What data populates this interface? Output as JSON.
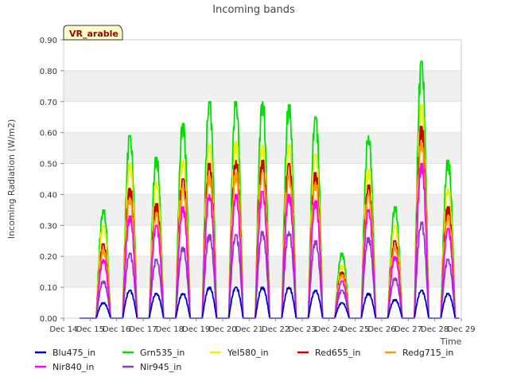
{
  "chart_data": {
    "type": "line",
    "title": "Incoming bands",
    "xlabel": "Time",
    "ylabel": "Incoming Radiation (W/m2)",
    "site_label": "VR_arable",
    "ylim": [
      0,
      0.9
    ],
    "xlim": [
      14,
      29
    ],
    "yticks": [
      "0.00",
      "0.10",
      "0.20",
      "0.30",
      "0.40",
      "0.50",
      "0.60",
      "0.70",
      "0.80",
      "0.90"
    ],
    "xticks": [
      "Dec 14",
      "Dec 15",
      "Dec 16",
      "Dec 17",
      "Dec 18",
      "Dec 19",
      "Dec 20",
      "Dec 21",
      "Dec 22",
      "Dec 23",
      "Dec 24",
      "Dec 25",
      "Dec 26",
      "Dec 27",
      "Dec 28",
      "Dec 29"
    ],
    "grid": "horizontal bands",
    "legend_position": "bottom",
    "days": [
      15,
      16,
      17,
      18,
      19,
      20,
      21,
      22,
      23,
      24,
      25,
      26,
      27,
      28
    ],
    "series": [
      {
        "name": "Blu475_in",
        "color": "#0000cc",
        "values": [
          0.05,
          0.09,
          0.08,
          0.08,
          0.1,
          0.1,
          0.1,
          0.1,
          0.09,
          0.05,
          0.08,
          0.06,
          0.09,
          0.08
        ]
      },
      {
        "name": "Grn535_in",
        "color": "#00e000",
        "values": [
          0.35,
          0.59,
          0.52,
          0.63,
          0.7,
          0.7,
          0.7,
          0.69,
          0.65,
          0.21,
          0.59,
          0.36,
          0.83,
          0.51
        ]
      },
      {
        "name": "Yel580_in",
        "color": "#f0f000",
        "values": [
          0.3,
          0.5,
          0.44,
          0.51,
          0.56,
          0.57,
          0.56,
          0.56,
          0.53,
          0.17,
          0.48,
          0.3,
          0.69,
          0.42
        ]
      },
      {
        "name": "Red655_in",
        "color": "#cc0000",
        "values": [
          0.24,
          0.42,
          0.37,
          0.45,
          0.5,
          0.51,
          0.51,
          0.5,
          0.47,
          0.15,
          0.43,
          0.25,
          0.62,
          0.36
        ]
      },
      {
        "name": "Redg715_in",
        "color": "#ff9900",
        "values": [
          0.22,
          0.39,
          0.34,
          0.42,
          0.46,
          0.47,
          0.47,
          0.46,
          0.44,
          0.14,
          0.4,
          0.23,
          0.57,
          0.33
        ]
      },
      {
        "name": "Nir840_in",
        "color": "#ff00ff",
        "values": [
          0.19,
          0.33,
          0.3,
          0.36,
          0.4,
          0.4,
          0.41,
          0.4,
          0.38,
          0.12,
          0.35,
          0.2,
          0.5,
          0.29
        ]
      },
      {
        "name": "Nir945_in",
        "color": "#9933cc",
        "values": [
          0.12,
          0.21,
          0.19,
          0.23,
          0.27,
          0.27,
          0.28,
          0.28,
          0.25,
          0.09,
          0.26,
          0.13,
          0.31,
          0.19
        ]
      }
    ]
  }
}
